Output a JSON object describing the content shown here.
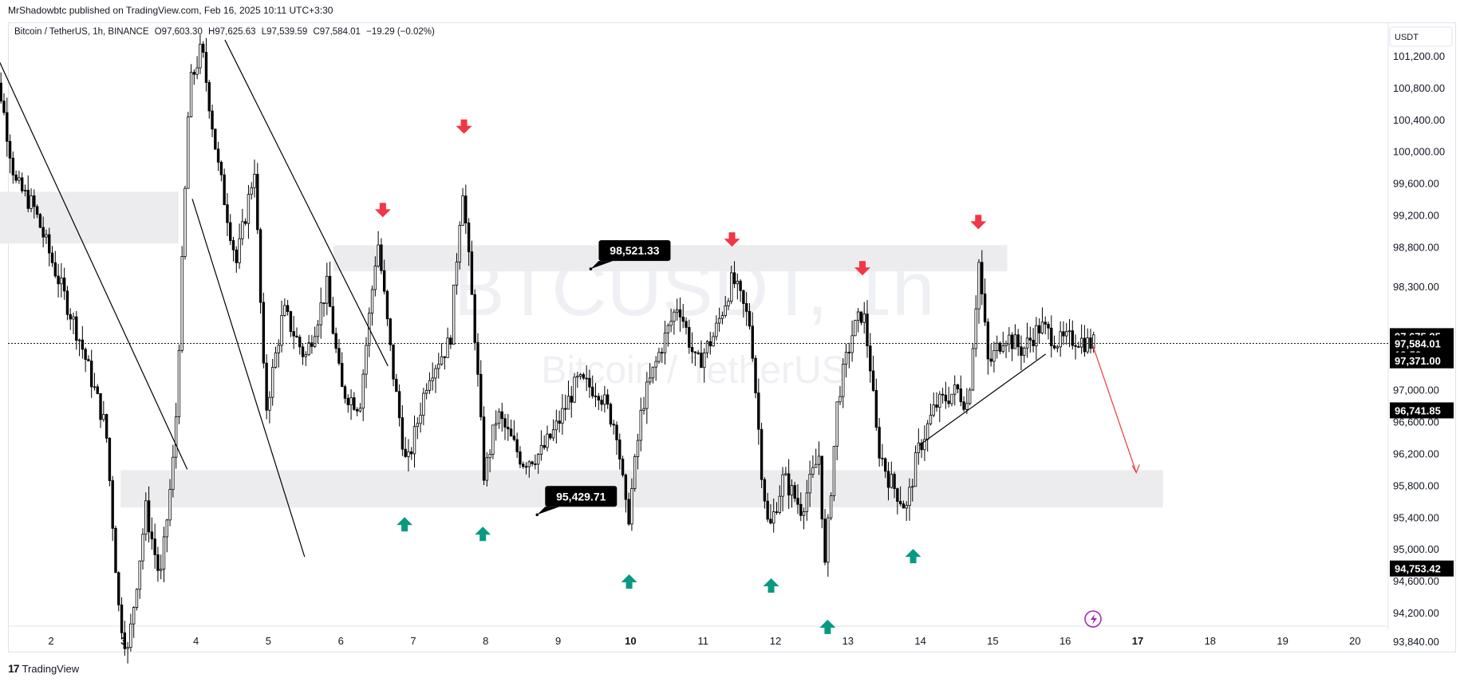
{
  "publisher": "MrShadowbtc published on TradingView.com, Feb 16, 2025 10:11 UTC+3:30",
  "legend": {
    "symbol": "Bitcoin / TetherUS, 1h, BINANCE",
    "open": "O97,603.30",
    "high": "H97,625.63",
    "low": "L97,539.59",
    "close": "C97,584.01",
    "change": "−19.29 (−0.02%)"
  },
  "currency": "USDT",
  "watermark": {
    "main": "BTCUSDT, 1h",
    "sub": "Bitcoin / TetherUS"
  },
  "footer_brand": "TradingView",
  "colors": {
    "up_arrow": "#089981",
    "down_arrow": "#f23645",
    "forecast_arrow": "#f23645",
    "zone": "#ececee",
    "candle": "#000000"
  },
  "chart_data": {
    "type": "candlestick",
    "ylim": [
      93600,
      101550
    ],
    "price_ticks": [
      "101,200.00",
      "100,800.00",
      "100,400.00",
      "100,000.00",
      "99,600.00",
      "99,200.00",
      "98,800.00",
      "98,300.00",
      "97,000.00",
      "96,600.00",
      "96,200.00",
      "95,800.00",
      "95,400.00",
      "95,000.00",
      "94,600.00",
      "94,200.00",
      "93,840.00"
    ],
    "price_tick_values": [
      101200,
      100800,
      100400,
      100000,
      99600,
      99200,
      98800,
      98300,
      97000,
      96600,
      96200,
      95800,
      95400,
      95000,
      94600,
      94200,
      93840
    ],
    "x_labels": [
      {
        "label": "2",
        "day": 2,
        "bold": false
      },
      {
        "label": "3",
        "day": 3,
        "bold": true
      },
      {
        "label": "4",
        "day": 4,
        "bold": false
      },
      {
        "label": "5",
        "day": 5,
        "bold": false
      },
      {
        "label": "6",
        "day": 6,
        "bold": false
      },
      {
        "label": "7",
        "day": 7,
        "bold": false
      },
      {
        "label": "8",
        "day": 8,
        "bold": false
      },
      {
        "label": "9",
        "day": 9,
        "bold": false
      },
      {
        "label": "10",
        "day": 10,
        "bold": true
      },
      {
        "label": "11",
        "day": 11,
        "bold": false
      },
      {
        "label": "12",
        "day": 12,
        "bold": false
      },
      {
        "label": "13",
        "day": 13,
        "bold": false
      },
      {
        "label": "14",
        "day": 14,
        "bold": false
      },
      {
        "label": "15",
        "day": 15,
        "bold": false
      },
      {
        "label": "16",
        "day": 16,
        "bold": false
      },
      {
        "label": "17",
        "day": 17,
        "bold": true
      },
      {
        "label": "18",
        "day": 18,
        "bold": false
      },
      {
        "label": "19",
        "day": 19,
        "bold": false
      },
      {
        "label": "20",
        "day": 20,
        "bold": false
      }
    ],
    "price_badges": [
      {
        "text": "97,675.25",
        "value": 97675.25,
        "color": "#000000"
      },
      {
        "text": "97,584.01",
        "value": 97584.01,
        "color": "#000000",
        "sub": "18:58"
      },
      {
        "text": "97,371.00",
        "value": 97371,
        "color": "#000000"
      },
      {
        "text": "96,741.85",
        "value": 96741.85,
        "color": "#000000"
      },
      {
        "text": "94,753.42",
        "value": 94753.42,
        "color": "#000000"
      }
    ],
    "current_price": 97584.01,
    "zones": [
      {
        "from_day": 1.0,
        "to_day": 3.76,
        "low": 98840,
        "high": 99490
      },
      {
        "from_day": 5.9,
        "to_day": 15.2,
        "low": 98490,
        "high": 98820
      },
      {
        "from_day": 2.96,
        "to_day": 17.35,
        "low": 95520,
        "high": 95990
      }
    ],
    "labels": [
      {
        "text": "98,521.33",
        "day": 9.45,
        "value": 98521.33
      },
      {
        "text": "95,429.71",
        "day": 8.71,
        "value": 95429.71
      }
    ],
    "down_arrows": [
      {
        "day": 6.58,
        "value": 99250
      },
      {
        "day": 7.7,
        "value": 100300
      },
      {
        "day": 11.4,
        "value": 98880
      },
      {
        "day": 13.2,
        "value": 98520
      },
      {
        "day": 14.8,
        "value": 99100
      }
    ],
    "up_arrows": [
      {
        "day": 6.88,
        "value": 95300
      },
      {
        "day": 7.96,
        "value": 95180
      },
      {
        "day": 9.98,
        "value": 94580
      },
      {
        "day": 11.94,
        "value": 94530
      },
      {
        "day": 12.72,
        "value": 94010
      },
      {
        "day": 13.9,
        "value": 94900
      }
    ],
    "trend_lines": [
      {
        "d1": 1.2,
        "v1": 101300,
        "d2": 3.88,
        "v2": 96000
      },
      {
        "d1": 3.95,
        "v1": 99400,
        "d2": 5.5,
        "v2": 94900
      },
      {
        "d1": 4.4,
        "v1": 101400,
        "d2": 6.65,
        "v2": 97300
      },
      {
        "d1": 13.98,
        "v1": 96300,
        "d2": 15.73,
        "v2": 97450
      }
    ],
    "forecast": {
      "d1": 16.38,
      "v1": 97560,
      "d2": 16.98,
      "v2": 95960
    },
    "candles_summary": {
      "start_day": 1.1,
      "end_day": 16.4,
      "first_close": 101400,
      "last_close": 97584.01
    },
    "anchors": [
      {
        "day": 1.1,
        "value": 101400
      },
      {
        "day": 1.35,
        "value": 100700
      },
      {
        "day": 1.55,
        "value": 99600
      },
      {
        "day": 1.8,
        "value": 99300
      },
      {
        "day": 2.1,
        "value": 98500
      },
      {
        "day": 2.45,
        "value": 97600
      },
      {
        "day": 2.8,
        "value": 96500
      },
      {
        "day": 2.98,
        "value": 94200
      },
      {
        "day": 3.1,
        "value": 93700
      },
      {
        "day": 3.35,
        "value": 95500
      },
      {
        "day": 3.55,
        "value": 94600
      },
      {
        "day": 3.75,
        "value": 96300
      },
      {
        "day": 3.95,
        "value": 100800
      },
      {
        "day": 4.12,
        "value": 101300
      },
      {
        "day": 4.35,
        "value": 99800
      },
      {
        "day": 4.6,
        "value": 98600
      },
      {
        "day": 4.85,
        "value": 99800
      },
      {
        "day": 5.0,
        "value": 96700
      },
      {
        "day": 5.25,
        "value": 98000
      },
      {
        "day": 5.55,
        "value": 97400
      },
      {
        "day": 5.85,
        "value": 98300
      },
      {
        "day": 6.05,
        "value": 97000
      },
      {
        "day": 6.3,
        "value": 96800
      },
      {
        "day": 6.55,
        "value": 98900
      },
      {
        "day": 6.75,
        "value": 97300
      },
      {
        "day": 6.95,
        "value": 96000
      },
      {
        "day": 7.25,
        "value": 97200
      },
      {
        "day": 7.55,
        "value": 97600
      },
      {
        "day": 7.72,
        "value": 99600
      },
      {
        "day": 7.9,
        "value": 97600
      },
      {
        "day": 8.02,
        "value": 95900
      },
      {
        "day": 8.2,
        "value": 96700
      },
      {
        "day": 8.55,
        "value": 96100
      },
      {
        "day": 8.8,
        "value": 96200
      },
      {
        "day": 9.0,
        "value": 96500
      },
      {
        "day": 9.3,
        "value": 97100
      },
      {
        "day": 9.6,
        "value": 97000
      },
      {
        "day": 9.85,
        "value": 96500
      },
      {
        "day": 10.0,
        "value": 95300
      },
      {
        "day": 10.2,
        "value": 96800
      },
      {
        "day": 10.45,
        "value": 97500
      },
      {
        "day": 10.7,
        "value": 98100
      },
      {
        "day": 10.95,
        "value": 97300
      },
      {
        "day": 11.2,
        "value": 97700
      },
      {
        "day": 11.45,
        "value": 98400
      },
      {
        "day": 11.7,
        "value": 97800
      },
      {
        "day": 11.85,
        "value": 96000
      },
      {
        "day": 11.95,
        "value": 95200
      },
      {
        "day": 12.15,
        "value": 95900
      },
      {
        "day": 12.4,
        "value": 95500
      },
      {
        "day": 12.65,
        "value": 96200
      },
      {
        "day": 12.72,
        "value": 94700
      },
      {
        "day": 12.9,
        "value": 96900
      },
      {
        "day": 13.1,
        "value": 97700
      },
      {
        "day": 13.25,
        "value": 98000
      },
      {
        "day": 13.35,
        "value": 97300
      },
      {
        "day": 13.45,
        "value": 96300
      },
      {
        "day": 13.6,
        "value": 95900
      },
      {
        "day": 13.85,
        "value": 95500
      },
      {
        "day": 14.0,
        "value": 96200
      },
      {
        "day": 14.25,
        "value": 96800
      },
      {
        "day": 14.55,
        "value": 97000
      },
      {
        "day": 14.7,
        "value": 96800
      },
      {
        "day": 14.85,
        "value": 98600
      },
      {
        "day": 14.98,
        "value": 97300
      },
      {
        "day": 15.2,
        "value": 97700
      },
      {
        "day": 15.45,
        "value": 97500
      },
      {
        "day": 15.7,
        "value": 97800
      },
      {
        "day": 15.95,
        "value": 97600
      },
      {
        "day": 16.2,
        "value": 97650
      },
      {
        "day": 16.35,
        "value": 97584
      }
    ]
  }
}
